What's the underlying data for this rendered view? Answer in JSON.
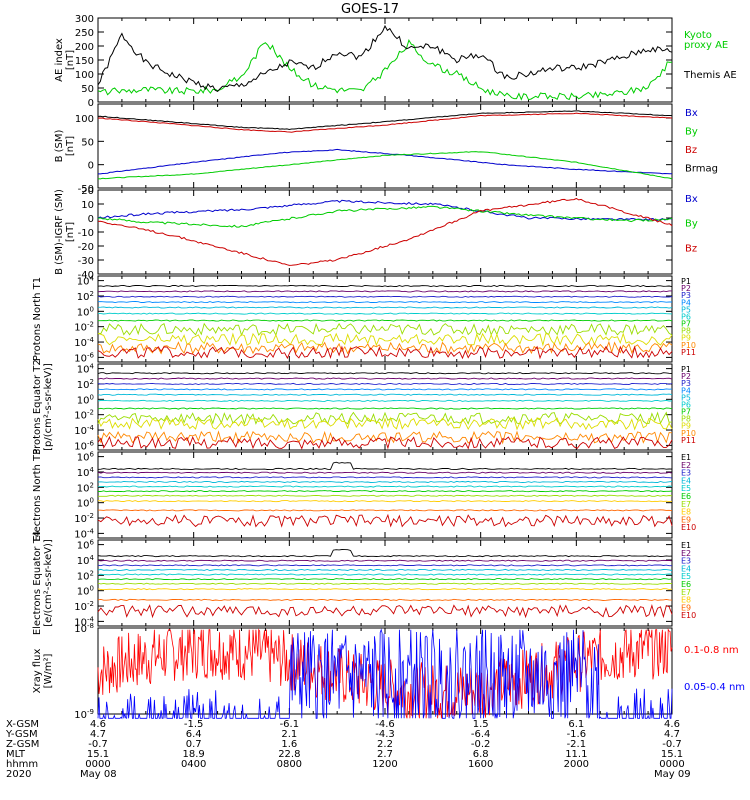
{
  "title": "GOES-17",
  "colors": {
    "axis": "#000000",
    "kyoto": "#00cc00",
    "themis": "#000000",
    "bx": "#0000cc",
    "by": "#00cc00",
    "bz": "#cc0000",
    "brmag": "#000000",
    "xray_long": "#ff0000",
    "xray_short": "#0000ff"
  },
  "chart_data": [
    {
      "type": "line",
      "panel": "ae",
      "ylabel": "AE index [nT]",
      "ylim": [
        0,
        300
      ],
      "yticks": [
        "300",
        "250",
        "200",
        "150",
        "100",
        "50",
        "0"
      ],
      "series": [
        {
          "name": "Kyoto proxy AE",
          "labels": [
            "Kyoto",
            "proxy AE"
          ],
          "color": "#00cc00",
          "x": [
            0,
            1,
            2,
            3,
            4,
            5,
            6,
            7,
            8,
            9,
            10,
            11,
            12,
            13,
            14,
            15,
            16,
            17,
            18,
            19,
            20,
            21,
            22,
            23,
            24
          ],
          "y": [
            35,
            40,
            45,
            40,
            40,
            45,
            90,
            220,
            120,
            60,
            45,
            40,
            110,
            210,
            130,
            100,
            50,
            20,
            20,
            20,
            20,
            25,
            35,
            55,
            150
          ]
        },
        {
          "name": "Themis AE",
          "labels": [
            "Themis AE"
          ],
          "color": "#000000",
          "x": [
            0,
            1,
            2,
            3,
            4,
            5,
            6,
            7,
            8,
            9,
            10,
            11,
            12,
            13,
            14,
            15,
            16,
            17,
            18,
            19,
            20,
            21,
            22,
            23,
            24
          ],
          "y": [
            60,
            240,
            140,
            100,
            70,
            45,
            60,
            100,
            140,
            120,
            180,
            160,
            270,
            190,
            200,
            150,
            170,
            90,
            100,
            120,
            120,
            140,
            160,
            190,
            180
          ]
        }
      ]
    },
    {
      "type": "line",
      "panel": "b_sm",
      "ylabel": "B (SM) [nT]",
      "ylim": [
        -50,
        130
      ],
      "yticks": [
        "100",
        "50",
        "0",
        "-50"
      ],
      "series": [
        {
          "name": "Bx",
          "color": "#0000cc",
          "x": [
            0,
            4,
            7.5,
            10,
            13,
            17,
            20,
            24
          ],
          "y": [
            -20,
            5,
            25,
            32,
            20,
            0,
            -10,
            -20
          ]
        },
        {
          "name": "By",
          "color": "#00cc00",
          "x": [
            0,
            4,
            8,
            12,
            16,
            20,
            24
          ],
          "y": [
            -30,
            -20,
            0,
            20,
            28,
            5,
            -30
          ]
        },
        {
          "name": "Bz",
          "color": "#cc0000",
          "x": [
            0,
            3,
            6,
            8,
            12,
            16,
            20,
            24
          ],
          "y": [
            100,
            88,
            75,
            70,
            85,
            105,
            110,
            100
          ]
        },
        {
          "name": "Brmag",
          "color": "#000000",
          "x": [
            0,
            3,
            6,
            8,
            12,
            16,
            20,
            24
          ],
          "y": [
            104,
            92,
            80,
            76,
            92,
            110,
            115,
            105
          ]
        }
      ]
    },
    {
      "type": "line",
      "panel": "b_igrf",
      "ylabel": "B (SM)-IGRF (SM) [nT]",
      "ylim": [
        -40,
        20
      ],
      "yticks": [
        "20",
        "10",
        "0",
        "-10",
        "-20",
        "-30",
        "-40"
      ],
      "series": [
        {
          "name": "Bx",
          "color": "#0000cc",
          "x": [
            0,
            2,
            6,
            10,
            14,
            18,
            22,
            24
          ],
          "y": [
            0,
            3,
            6,
            12,
            10,
            0,
            -1,
            -1
          ]
        },
        {
          "name": "By",
          "color": "#00cc00",
          "x": [
            0,
            2,
            6,
            10,
            14,
            18,
            22,
            24
          ],
          "y": [
            0,
            -3,
            -6,
            5,
            8,
            2,
            -2,
            -1
          ]
        },
        {
          "name": "Bz",
          "color": "#cc0000",
          "x": [
            0,
            3,
            6,
            8,
            10,
            13,
            16,
            20,
            24
          ],
          "y": [
            -2,
            -12,
            -25,
            -34,
            -30,
            -15,
            5,
            14,
            -5
          ]
        }
      ]
    },
    {
      "type": "line",
      "panel": "protons_t1",
      "ylabel": "Protons North T1",
      "scale": "log",
      "yticks": [
        "10^4",
        "10^2",
        "10^0",
        "10^-2",
        "10^-4",
        "10^-6"
      ],
      "series": [
        {
          "name": "P1",
          "color": "#000000",
          "log_level": 3.3
        },
        {
          "name": "P2",
          "color": "#6a006a",
          "log_level": 2.6
        },
        {
          "name": "P3",
          "color": "#2222cc",
          "log_level": 1.9
        },
        {
          "name": "P4",
          "color": "#0088ff",
          "log_level": 1.2
        },
        {
          "name": "P5",
          "color": "#00b8d8",
          "log_level": 0.5
        },
        {
          "name": "P6",
          "color": "#00cccc",
          "log_level": -0.3
        },
        {
          "name": "P7",
          "color": "#00cc00",
          "log_level": -1.2
        },
        {
          "name": "P8",
          "color": "#99dd00",
          "log_level": -2.2
        },
        {
          "name": "P9",
          "color": "#dddd00",
          "log_level": -3.5
        },
        {
          "name": "P10",
          "color": "#ff8800",
          "log_level": -4.6
        },
        {
          "name": "P11",
          "color": "#cc0000",
          "log_level": -5.2
        }
      ]
    },
    {
      "type": "line",
      "panel": "protons_t2",
      "ylabel": "Protons Equator T2 [p/(cm²-s-sr-keV)]",
      "scale": "log",
      "yticks": [
        "10^4",
        "10^2",
        "10^0",
        "10^-2",
        "10^-4",
        "10^-6"
      ],
      "series": [
        {
          "name": "P1",
          "color": "#000000",
          "log_level": 3.4
        },
        {
          "name": "P2",
          "color": "#6a006a",
          "log_level": 2.7
        },
        {
          "name": "P3",
          "color": "#2222cc",
          "log_level": 2.0
        },
        {
          "name": "P4",
          "color": "#0088ff",
          "log_level": 1.3
        },
        {
          "name": "P5",
          "color": "#00b8d8",
          "log_level": 0.6
        },
        {
          "name": "P6",
          "color": "#00cccc",
          "log_level": -0.2
        },
        {
          "name": "P7",
          "color": "#00cc00",
          "log_level": -1.2
        },
        {
          "name": "P8",
          "color": "#99dd00",
          "log_level": -2.3
        },
        {
          "name": "P9",
          "color": "#dddd00",
          "log_level": -3.0
        },
        {
          "name": "P10",
          "color": "#ff8800",
          "log_level": -4.8
        },
        {
          "name": "P11",
          "color": "#cc0000",
          "log_level": -5.5
        }
      ]
    },
    {
      "type": "line",
      "panel": "electrons_t3",
      "ylabel": "Electrons North T3",
      "scale": "log",
      "yticks": [
        "10^6",
        "10^4",
        "10^2",
        "10^0",
        "10^-2",
        "10^-4"
      ],
      "series": [
        {
          "name": "E1",
          "color": "#000000",
          "log_level": 4.4
        },
        {
          "name": "E2",
          "color": "#6a006a",
          "log_level": 3.9
        },
        {
          "name": "E3",
          "color": "#2222cc",
          "log_level": 3.3
        },
        {
          "name": "E4",
          "color": "#00b8d8",
          "log_level": 2.7
        },
        {
          "name": "E5",
          "color": "#00cccc",
          "log_level": 2.1
        },
        {
          "name": "E6",
          "color": "#00cc00",
          "log_level": 1.5
        },
        {
          "name": "E7",
          "color": "#99dd00",
          "log_level": 0.9
        },
        {
          "name": "E8",
          "color": "#ffcc00",
          "log_level": 0.2
        },
        {
          "name": "E9",
          "color": "#ff6600",
          "log_level": -1.0
        },
        {
          "name": "E10",
          "color": "#cc0000",
          "log_level": -2.2
        }
      ]
    },
    {
      "type": "line",
      "panel": "electrons_t4",
      "ylabel": "Electrons Equator T4 [e/(cm²-s-sr-keV)]",
      "scale": "log",
      "yticks": [
        "10^6",
        "10^4",
        "10^2",
        "10^0",
        "10^-2",
        "10^-4"
      ],
      "series": [
        {
          "name": "E1",
          "color": "#000000",
          "log_level": 4.5
        },
        {
          "name": "E2",
          "color": "#6a006a",
          "log_level": 3.9
        },
        {
          "name": "E3",
          "color": "#2222cc",
          "log_level": 3.3
        },
        {
          "name": "E4",
          "color": "#00b8d8",
          "log_level": 2.7
        },
        {
          "name": "E5",
          "color": "#00cccc",
          "log_level": 2.1
        },
        {
          "name": "E6",
          "color": "#00cc00",
          "log_level": 1.5
        },
        {
          "name": "E7",
          "color": "#99dd00",
          "log_level": 0.9
        },
        {
          "name": "E8",
          "color": "#ffcc00",
          "log_level": 0.2
        },
        {
          "name": "E9",
          "color": "#ff6600",
          "log_level": -1.2
        },
        {
          "name": "E10",
          "color": "#cc0000",
          "log_level": -2.5
        }
      ]
    },
    {
      "type": "line",
      "panel": "xray",
      "ylabel": "Xray flux [W/m²]",
      "scale": "log",
      "yticks": [
        "10^-8",
        "10^-9"
      ],
      "series": [
        {
          "name": "0.1-0.8 nm",
          "color": "#ff0000"
        },
        {
          "name": "0.05-0.4 nm",
          "color": "#0000ff"
        }
      ]
    }
  ],
  "ephemeris": {
    "rows": [
      {
        "label": "X-GSM",
        "values": [
          "4.6",
          "-1.5",
          "-6.1",
          "-4.6",
          "1.5",
          "6.1",
          "4.6"
        ]
      },
      {
        "label": "Y-GSM",
        "values": [
          "4.7",
          "6.4",
          "2.1",
          "-4.3",
          "-6.4",
          "-1.6",
          "4.7"
        ]
      },
      {
        "label": "Z-GSM",
        "values": [
          "-0.7",
          "0.7",
          "1.6",
          "2.2",
          "-0.2",
          "-2.1",
          "-0.7"
        ]
      },
      {
        "label": "MLT",
        "values": [
          "15.1",
          "18.9",
          "22.8",
          "2.7",
          "6.8",
          "11.1",
          "15.1"
        ]
      },
      {
        "label": "hhmm",
        "values": [
          "0000",
          "0400",
          "0800",
          "1200",
          "1600",
          "2000",
          "0000"
        ]
      },
      {
        "label": "2020",
        "values": [
          "May 08",
          "",
          "",
          "",
          "",
          "",
          "May 09"
        ]
      }
    ]
  }
}
